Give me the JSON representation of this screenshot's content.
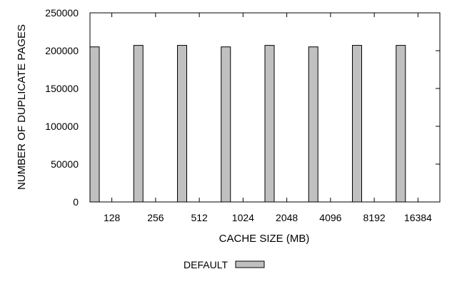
{
  "chart_data": {
    "type": "bar",
    "title": "",
    "xlabel": "CACHE SIZE (MB)",
    "ylabel": "NUMBER OF DUPLICATE PAGES",
    "categories": [
      "128",
      "256",
      "512",
      "1024",
      "2048",
      "4096",
      "8192",
      "16384"
    ],
    "series": [
      {
        "name": "DEFAULT",
        "color": "#c0c0c0",
        "values": [
          205000,
          207000,
          207000,
          205000,
          207000,
          205000,
          207000,
          207000
        ]
      }
    ],
    "ylim": [
      0,
      250000
    ],
    "yticks": [
      0,
      50000,
      100000,
      150000,
      200000,
      250000
    ],
    "ytick_labels": [
      "0",
      "50000",
      "100000",
      "150000",
      "200000",
      "250000"
    ],
    "grid": false,
    "legend_position": "bottom-center"
  }
}
